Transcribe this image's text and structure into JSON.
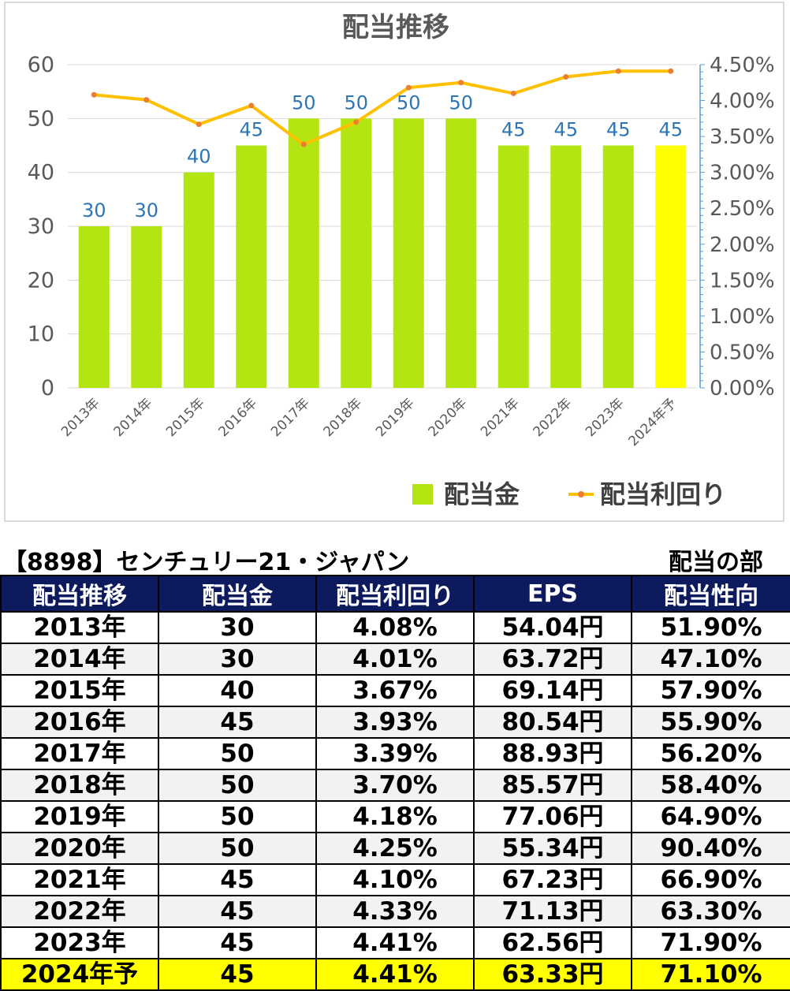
{
  "chart_data": {
    "type": "bar",
    "title": "配当推移",
    "categories": [
      "2013年",
      "2014年",
      "2015年",
      "2016年",
      "2017年",
      "2018年",
      "2019年",
      "2020年",
      "2021年",
      "2022年",
      "2023年",
      "2024年予"
    ],
    "series": [
      {
        "name": "配当金",
        "type": "bar",
        "axis": "left",
        "values": [
          30,
          30,
          40,
          45,
          50,
          50,
          50,
          50,
          45,
          45,
          45,
          45
        ],
        "color": "#b3e512",
        "highlight_color": "#ffff00",
        "highlight_index": 11
      },
      {
        "name": "配当利回り",
        "type": "line",
        "axis": "right",
        "values": [
          4.08,
          4.01,
          3.67,
          3.93,
          3.39,
          3.7,
          4.18,
          4.25,
          4.1,
          4.33,
          4.41,
          4.41
        ],
        "color": "#ffc000",
        "marker_color": "#ed7d31"
      }
    ],
    "y_left": {
      "ylim": [
        0,
        60
      ],
      "ticks": [
        "0",
        "10",
        "20",
        "30",
        "40",
        "50",
        "60"
      ]
    },
    "y_right": {
      "ylim": [
        0,
        4.5
      ],
      "ticks": [
        "0.00%",
        "0.50%",
        "1.00%",
        "1.50%",
        "2.00%",
        "2.50%",
        "3.00%",
        "3.50%",
        "4.00%",
        "4.50%"
      ]
    },
    "data_labels": [
      "30",
      "30",
      "40",
      "45",
      "50",
      "50",
      "50",
      "50",
      "45",
      "45",
      "45",
      "45"
    ],
    "grid": true,
    "legend_position": "bottom-right"
  },
  "table": {
    "caption": "【8898】センチュリー21・ジャパン",
    "subtitle": "配当の部",
    "headers": [
      "配当推移",
      "配当金",
      "配当利回り",
      "EPS",
      "配当性向"
    ],
    "rows": [
      [
        "2013年",
        "30",
        "4.08%",
        "54.04円",
        "51.90%"
      ],
      [
        "2014年",
        "30",
        "4.01%",
        "63.72円",
        "47.10%"
      ],
      [
        "2015年",
        "40",
        "3.67%",
        "69.14円",
        "57.90%"
      ],
      [
        "2016年",
        "45",
        "3.93%",
        "80.54円",
        "55.90%"
      ],
      [
        "2017年",
        "50",
        "3.39%",
        "88.93円",
        "56.20%"
      ],
      [
        "2018年",
        "50",
        "3.70%",
        "85.57円",
        "58.40%"
      ],
      [
        "2019年",
        "50",
        "4.18%",
        "77.06円",
        "64.90%"
      ],
      [
        "2020年",
        "50",
        "4.25%",
        "55.34円",
        "90.40%"
      ],
      [
        "2021年",
        "45",
        "4.10%",
        "67.23円",
        "66.90%"
      ],
      [
        "2022年",
        "45",
        "4.33%",
        "71.13円",
        "63.30%"
      ],
      [
        "2023年",
        "45",
        "4.41%",
        "62.56円",
        "71.90%"
      ],
      [
        "2024年予",
        "45",
        "4.41%",
        "63.33円",
        "71.10%"
      ]
    ],
    "forecast_row_index": 11
  }
}
